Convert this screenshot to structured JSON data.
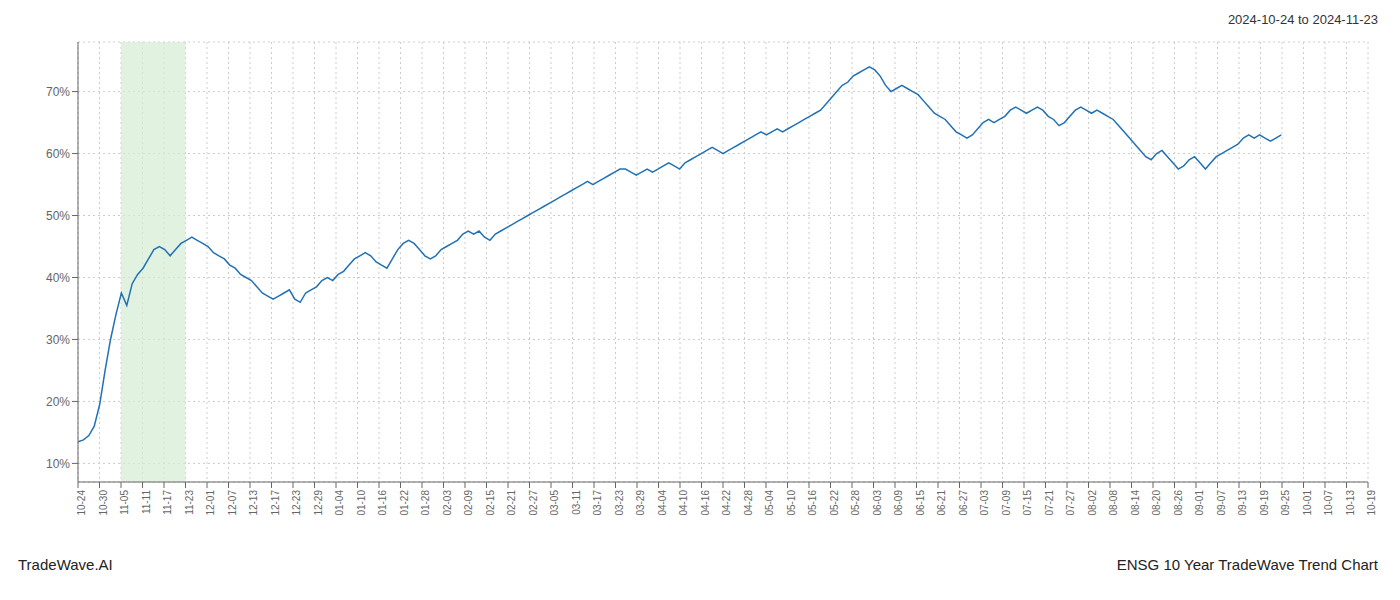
{
  "chart_data": {
    "type": "line",
    "annotations": [
      "2024-10-24 to 2024-11-23",
      "TradeWave.AI",
      "ENSG 10 Year TradeWave Trend Chart"
    ],
    "color": "#2171b5",
    "grid": true,
    "ylim": [
      7,
      78
    ],
    "yticks": [
      {
        "value": 10,
        "label": "10%"
      },
      {
        "value": 20,
        "label": "20%"
      },
      {
        "value": 30,
        "label": "30%"
      },
      {
        "value": 40,
        "label": "40%"
      },
      {
        "value": 50,
        "label": "50%"
      },
      {
        "value": 60,
        "label": "60%"
      },
      {
        "value": 70,
        "label": "70%"
      }
    ],
    "xlim": [
      0,
      238
    ],
    "xticks": [
      {
        "value": 0,
        "label": "10-24"
      },
      {
        "value": 3.966666666666667,
        "label": "10-30"
      },
      {
        "value": 7.933333333333333,
        "label": "11-05"
      },
      {
        "value": 11.9,
        "label": "11-11"
      },
      {
        "value": 15.866666666666667,
        "label": "11-17"
      },
      {
        "value": 19.833333333333332,
        "label": "11-23"
      },
      {
        "value": 23.8,
        "label": "12-01"
      },
      {
        "value": 27.766666666666666,
        "label": "12-07"
      },
      {
        "value": 31.733333333333334,
        "label": "12-13"
      },
      {
        "value": 35.7,
        "label": "12-17"
      },
      {
        "value": 39.666666666666664,
        "label": "12-23"
      },
      {
        "value": 43.63333333333333,
        "label": "12-29"
      },
      {
        "value": 47.6,
        "label": "01-04"
      },
      {
        "value": 51.56666666666667,
        "label": "01-10"
      },
      {
        "value": 55.53333333333333,
        "label": "01-16"
      },
      {
        "value": 59.5,
        "label": "01-22"
      },
      {
        "value": 63.46666666666667,
        "label": "01-28"
      },
      {
        "value": 67.43333333333334,
        "label": "02-03"
      },
      {
        "value": 71.4,
        "label": "02-09"
      },
      {
        "value": 75.36666666666666,
        "label": "02-15"
      },
      {
        "value": 79.33333333333333,
        "label": "02-21"
      },
      {
        "value": 83.3,
        "label": "02-27"
      },
      {
        "value": 87.26666666666667,
        "label": "03-05"
      },
      {
        "value": 91.23333333333333,
        "label": "03-11"
      },
      {
        "value": 95.2,
        "label": "03-17"
      },
      {
        "value": 99.16666666666667,
        "label": "03-23"
      },
      {
        "value": 103.13333333333334,
        "label": "03-29"
      },
      {
        "value": 107.1,
        "label": "04-04"
      },
      {
        "value": 111.06666666666666,
        "label": "04-10"
      },
      {
        "value": 115.03333333333333,
        "label": "04-16"
      },
      {
        "value": 119,
        "label": "04-22"
      },
      {
        "value": 122.96666666666667,
        "label": "04-28"
      },
      {
        "value": 126.93333333333334,
        "label": "05-04"
      },
      {
        "value": 130.9,
        "label": "05-10"
      },
      {
        "value": 134.86666666666667,
        "label": "05-16"
      },
      {
        "value": 138.83333333333334,
        "label": "05-22"
      },
      {
        "value": 142.8,
        "label": "05-28"
      },
      {
        "value": 146.76666666666668,
        "label": "06-03"
      },
      {
        "value": 150.73333333333332,
        "label": "06-09"
      },
      {
        "value": 154.7,
        "label": "06-15"
      },
      {
        "value": 158.66666666666666,
        "label": "06-21"
      },
      {
        "value": 162.63333333333333,
        "label": "06-27"
      },
      {
        "value": 166.6,
        "label": "07-03"
      },
      {
        "value": 170.56666666666666,
        "label": "07-09"
      },
      {
        "value": 174.53333333333333,
        "label": "07-15"
      },
      {
        "value": 178.5,
        "label": "07-21"
      },
      {
        "value": 182.46666666666667,
        "label": "07-27"
      },
      {
        "value": 186.43333333333334,
        "label": "08-02"
      },
      {
        "value": 190.4,
        "label": "08-08"
      },
      {
        "value": 194.36666666666667,
        "label": "08-14"
      },
      {
        "value": 198.33333333333334,
        "label": "08-20"
      },
      {
        "value": 202.3,
        "label": "08-26"
      },
      {
        "value": 206.26666666666668,
        "label": "09-01"
      },
      {
        "value": 210.23333333333332,
        "label": "09-07"
      },
      {
        "value": 214.2,
        "label": "09-13"
      },
      {
        "value": 218.16666666666666,
        "label": "09-19"
      },
      {
        "value": 222.13333333333333,
        "label": "09-25"
      },
      {
        "value": 226.1,
        "label": "10-01"
      },
      {
        "value": 230.06666666666666,
        "label": "10-07"
      },
      {
        "value": 234.03333333333333,
        "label": "10-13"
      },
      {
        "value": 238,
        "label": "10-19"
      }
    ],
    "shade": {
      "from": 7.933333333333333,
      "to": 19.833333333333332,
      "color": "#d5ecd4"
    },
    "values": [
      13.5,
      13.8,
      14.5,
      16.0,
      19.5,
      25.0,
      30.0,
      34.0,
      37.5,
      35.5,
      39.0,
      40.5,
      41.5,
      43.0,
      44.5,
      45.0,
      44.5,
      43.5,
      44.5,
      45.5,
      46.0,
      46.5,
      46.0,
      45.5,
      45.0,
      44.0,
      43.5,
      43.0,
      42.0,
      41.5,
      40.5,
      40.0,
      39.5,
      38.5,
      37.5,
      37.0,
      36.5,
      37.0,
      37.5,
      38.0,
      36.5,
      36.0,
      37.5,
      38.0,
      38.5,
      39.5,
      40.0,
      39.5,
      40.5,
      41.0,
      42.0,
      43.0,
      43.5,
      44.0,
      43.5,
      42.5,
      42.0,
      41.5,
      43.0,
      44.5,
      45.5,
      46.0,
      45.5,
      44.5,
      43.5,
      43.0,
      43.5,
      44.5,
      45.0,
      45.5,
      46.0,
      47.0,
      47.5,
      47.0,
      47.5,
      46.5,
      46.0,
      47.0,
      47.5,
      48.0,
      48.5,
      49.0,
      49.5,
      50.0,
      50.5,
      51.0,
      51.5,
      52.0,
      52.5,
      53.0,
      53.5,
      54.0,
      54.5,
      55.0,
      55.5,
      55.0,
      55.5,
      56.0,
      56.5,
      57.0,
      57.5,
      57.5,
      57.0,
      56.5,
      57.0,
      57.5,
      57.0,
      57.5,
      58.0,
      58.5,
      58.0,
      57.5,
      58.5,
      59.0,
      59.5,
      60.0,
      60.5,
      61.0,
      60.5,
      60.0,
      60.5,
      61.0,
      61.5,
      62.0,
      62.5,
      63.0,
      63.5,
      63.0,
      63.5,
      64.0,
      63.5,
      64.0,
      64.5,
      65.0,
      65.5,
      66.0,
      66.5,
      67.0,
      68.0,
      69.0,
      70.0,
      71.0,
      71.5,
      72.5,
      73.0,
      73.5,
      74.0,
      73.5,
      72.5,
      71.0,
      70.0,
      70.5,
      71.0,
      70.5,
      70.0,
      69.5,
      68.5,
      67.5,
      66.5,
      66.0,
      65.5,
      64.5,
      63.5,
      63.0,
      62.5,
      63.0,
      64.0,
      65.0,
      65.5,
      65.0,
      65.5,
      66.0,
      67.0,
      67.5,
      67.0,
      66.5,
      67.0,
      67.5,
      67.0,
      66.0,
      65.5,
      64.5,
      65.0,
      66.0,
      67.0,
      67.5,
      67.0,
      66.5,
      67.0,
      66.5,
      66.0,
      65.5,
      64.5,
      63.5,
      62.5,
      61.5,
      60.5,
      59.5,
      59.0,
      60.0,
      60.5,
      59.5,
      58.5,
      57.5,
      58.0,
      59.0,
      59.5,
      58.5,
      57.5,
      58.5,
      59.5,
      60.0,
      60.5,
      61.0,
      61.5,
      62.5,
      63.0,
      62.5,
      63.0,
      62.5,
      62.0,
      62.5,
      63.0
    ]
  }
}
